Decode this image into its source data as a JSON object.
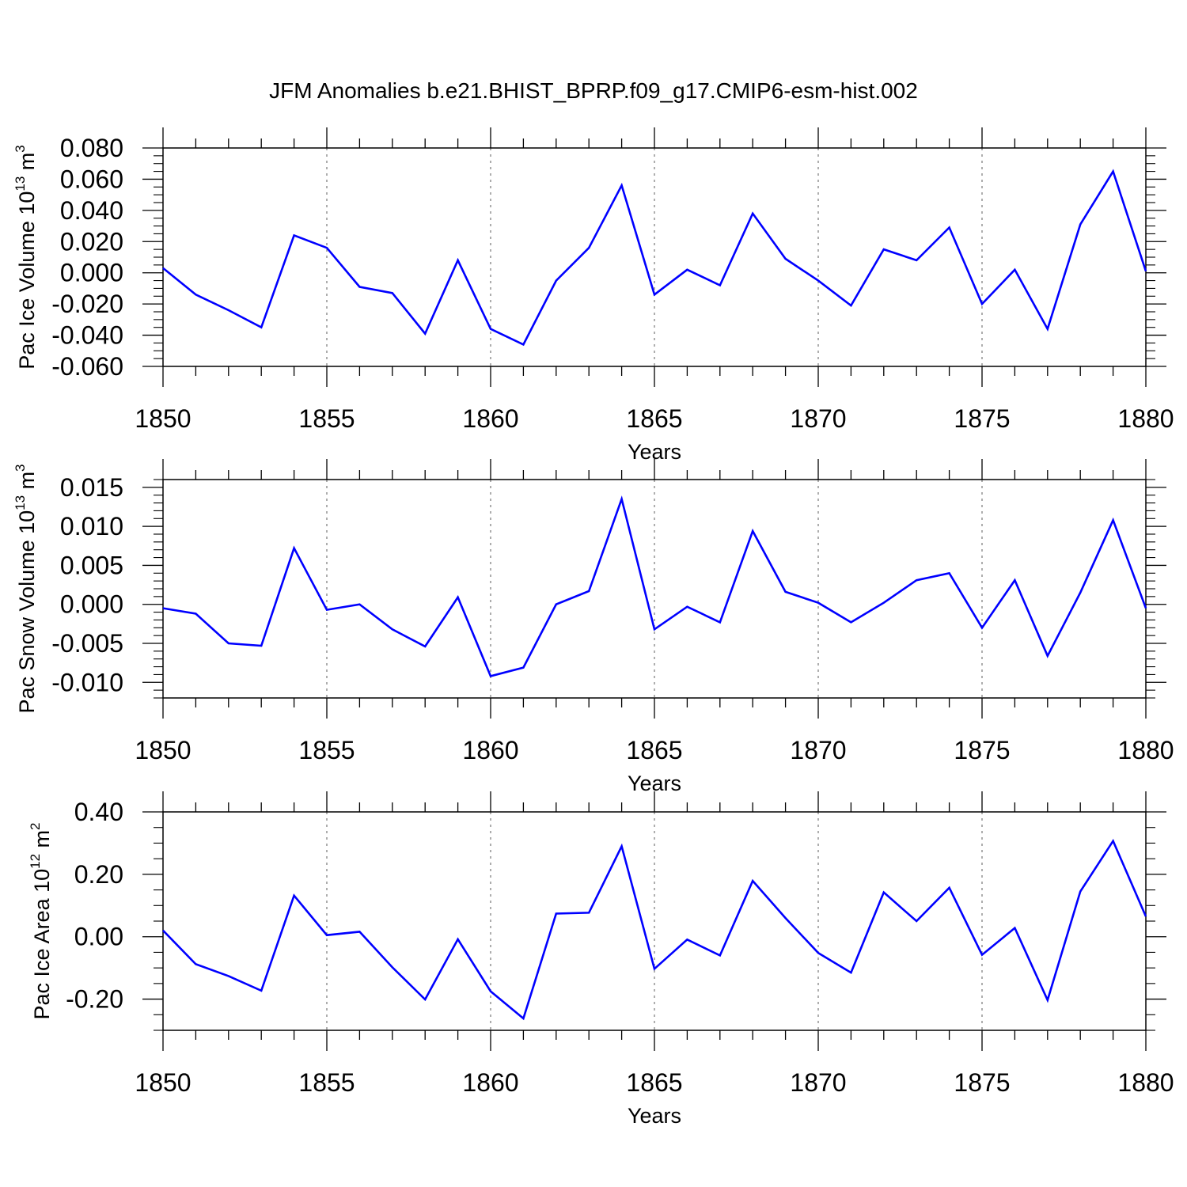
{
  "figure": {
    "title": "JFM Anomalies b.e21.BHIST_BPRP.f09_g17.CMIP6-esm-hist.002"
  },
  "chart_data": [
    {
      "type": "line",
      "title": "JFM Anomalies b.e21.BHIST_BPRP.f09_g17.CMIP6-esm-hist.002",
      "xlabel": "Years",
      "ylabel": {
        "main": "Pac Ice Volume 10",
        "exp": "13",
        "unit": " m",
        "unit_exp": "3"
      },
      "xlim": [
        1850,
        1880
      ],
      "ylim": [
        -0.06,
        0.08
      ],
      "x_ticks": [
        1850,
        1855,
        1860,
        1865,
        1870,
        1875,
        1880
      ],
      "x_tick_labels": [
        "1850",
        "1855",
        "1860",
        "1865",
        "1870",
        "1875",
        "1880"
      ],
      "y_ticks": [
        -0.06,
        -0.04,
        -0.02,
        0.0,
        0.02,
        0.04,
        0.06,
        0.08
      ],
      "y_tick_labels": [
        "-0.060",
        "-0.040",
        "-0.020",
        "0.000",
        "0.020",
        "0.040",
        "0.060",
        "0.080"
      ],
      "y_minor_step": 0.005,
      "grid": "vertical dashed at major x ticks",
      "line_color": "#0000ff",
      "series": [
        {
          "x": [
            1850,
            1851,
            1852,
            1853,
            1854,
            1855,
            1856,
            1857,
            1858,
            1859,
            1860,
            1861,
            1862,
            1863,
            1864,
            1865,
            1866,
            1867,
            1868,
            1869,
            1870,
            1871,
            1872,
            1873,
            1874,
            1875,
            1876,
            1877,
            1878,
            1879,
            1880
          ],
          "values": [
            0.003,
            -0.014,
            -0.024,
            -0.035,
            0.024,
            0.016,
            -0.009,
            -0.013,
            -0.039,
            0.008,
            -0.036,
            -0.046,
            -0.005,
            0.016,
            0.056,
            -0.014,
            0.002,
            -0.008,
            0.038,
            0.009,
            -0.005,
            -0.021,
            0.015,
            0.008,
            0.029,
            -0.02,
            0.002,
            -0.036,
            0.031,
            0.065,
            0.001
          ]
        }
      ]
    },
    {
      "type": "line",
      "xlabel": "Years",
      "ylabel": {
        "main": "Pac Snow Volume 10",
        "exp": "13",
        "unit": " m",
        "unit_exp": "3"
      },
      "xlim": [
        1850,
        1880
      ],
      "ylim": [
        -0.012,
        0.016
      ],
      "x_ticks": [
        1850,
        1855,
        1860,
        1865,
        1870,
        1875,
        1880
      ],
      "x_tick_labels": [
        "1850",
        "1855",
        "1860",
        "1865",
        "1870",
        "1875",
        "1880"
      ],
      "y_ticks": [
        -0.01,
        -0.005,
        0.0,
        0.005,
        0.01,
        0.015
      ],
      "y_tick_labels": [
        "-0.010",
        "-0.005",
        "0.000",
        "0.005",
        "0.010",
        "0.015"
      ],
      "y_minor_step": 0.001,
      "grid": "vertical dashed at major x ticks",
      "line_color": "#0000ff",
      "series": [
        {
          "x": [
            1850,
            1851,
            1852,
            1853,
            1854,
            1855,
            1856,
            1857,
            1858,
            1859,
            1860,
            1861,
            1862,
            1863,
            1864,
            1865,
            1866,
            1867,
            1868,
            1869,
            1870,
            1871,
            1872,
            1873,
            1874,
            1875,
            1876,
            1877,
            1878,
            1879,
            1880
          ],
          "values": [
            -0.0005,
            -0.0012,
            -0.005,
            -0.0053,
            0.0072,
            -0.0007,
            0.0,
            -0.0032,
            -0.0054,
            0.0009,
            -0.0092,
            -0.0081,
            0.0,
            0.0017,
            0.0135,
            -0.0032,
            -0.0003,
            -0.0023,
            0.0094,
            0.0016,
            0.0002,
            -0.0023,
            0.0002,
            0.0031,
            0.004,
            -0.003,
            0.0031,
            -0.0066,
            0.0015,
            0.0108,
            -0.0005
          ]
        }
      ]
    },
    {
      "type": "line",
      "xlabel": "Years",
      "ylabel": {
        "main": "Pac Ice Area 10",
        "exp": "12",
        "unit": " m",
        "unit_exp": "2"
      },
      "xlim": [
        1850,
        1880
      ],
      "ylim": [
        -0.3,
        0.4
      ],
      "x_ticks": [
        1850,
        1855,
        1860,
        1865,
        1870,
        1875,
        1880
      ],
      "x_tick_labels": [
        "1850",
        "1855",
        "1860",
        "1865",
        "1870",
        "1875",
        "1880"
      ],
      "y_ticks": [
        -0.2,
        0.0,
        0.2,
        0.4
      ],
      "y_tick_labels": [
        "-0.20",
        "0.00",
        "0.20",
        "0.40"
      ],
      "y_minor_step": 0.05,
      "grid": "vertical dashed at major x ticks",
      "line_color": "#0000ff",
      "series": [
        {
          "x": [
            1850,
            1851,
            1852,
            1853,
            1854,
            1855,
            1856,
            1857,
            1858,
            1859,
            1860,
            1861,
            1862,
            1863,
            1864,
            1865,
            1866,
            1867,
            1868,
            1869,
            1870,
            1871,
            1872,
            1873,
            1874,
            1875,
            1876,
            1877,
            1878,
            1879,
            1880
          ],
          "values": [
            0.02,
            -0.088,
            -0.126,
            -0.173,
            0.132,
            0.005,
            0.016,
            -0.098,
            -0.201,
            -0.008,
            -0.175,
            -0.262,
            0.074,
            0.077,
            0.29,
            -0.103,
            -0.009,
            -0.06,
            0.179,
            0.06,
            -0.052,
            -0.115,
            0.142,
            0.05,
            0.157,
            -0.058,
            0.028,
            -0.203,
            0.145,
            0.307,
            0.065
          ]
        }
      ]
    }
  ]
}
